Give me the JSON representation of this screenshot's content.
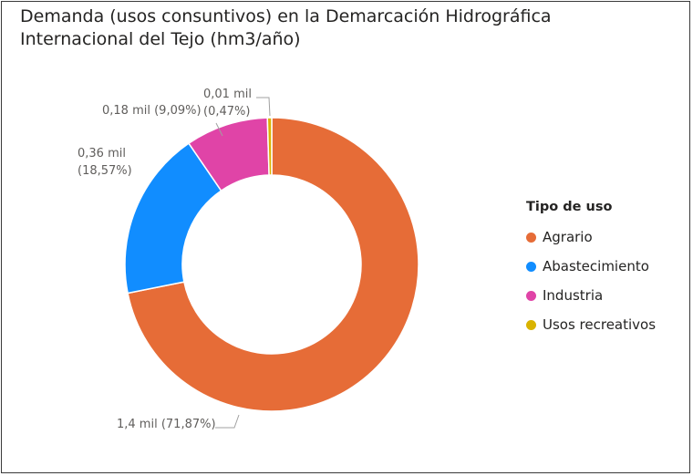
{
  "chart_data": {
    "type": "pie",
    "title": "Demanda (usos consuntivos) en la Demarcación Hidrográfica Internacional del Tejo (hm3/año)",
    "legend_title": "Tipo de uso",
    "legend_position": "right",
    "slices": [
      {
        "name": "Agrario",
        "value": 1.4,
        "percent": 71.87,
        "label": "1,4 mil (71,87%)",
        "color": "#E66C37"
      },
      {
        "name": "Abastecimiento",
        "value": 0.36,
        "percent": 18.57,
        "label": "0,36 mil (18,57%)",
        "color": "#118DFF"
      },
      {
        "name": "Industria",
        "value": 0.18,
        "percent": 9.09,
        "label": "0,18 mil (9,09%)",
        "color": "#E044A7"
      },
      {
        "name": "Usos recreativos",
        "value": 0.01,
        "percent": 0.47,
        "label": "0,01 mil (0,47%)",
        "color": "#D9B300"
      }
    ]
  }
}
